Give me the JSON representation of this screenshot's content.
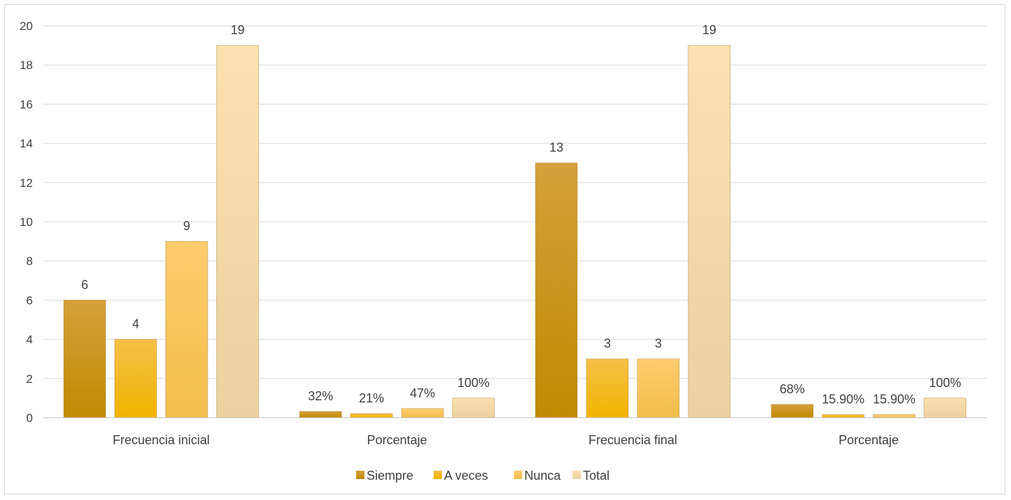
{
  "chart_data": {
    "type": "bar",
    "categories": [
      "Frecuencia inicial",
      "Porcentaje",
      "Frecuencia final",
      "Porcentaje"
    ],
    "series": [
      {
        "name": "Siempre",
        "values": [
          6,
          0.32,
          13,
          0.68
        ],
        "labels": [
          "6",
          "32%",
          "13",
          "68%"
        ],
        "color_top": "#d4a03c",
        "color_bottom": "#c08a00"
      },
      {
        "name": "A veces",
        "values": [
          4,
          0.21,
          3,
          0.159
        ],
        "labels": [
          "4",
          "21%",
          "3",
          "15.90%"
        ],
        "color_top": "#f5c048",
        "color_bottom": "#f2b400"
      },
      {
        "name": "Nunca",
        "values": [
          9,
          0.47,
          3,
          0.159
        ],
        "labels": [
          "9",
          "47%",
          "3",
          "15.90%"
        ],
        "color_top": "#ffcc6e",
        "color_bottom": "#f1bd4c"
      },
      {
        "name": "Total",
        "values": [
          19,
          1,
          19,
          1
        ],
        "labels": [
          "19",
          "100%",
          "19",
          "100%"
        ],
        "color_top": "#ffe0b0",
        "color_bottom": "#ecd0a0"
      }
    ],
    "ylim": [
      0,
      20
    ],
    "yticks": [
      0,
      2,
      4,
      6,
      8,
      10,
      12,
      14,
      16,
      18,
      20
    ],
    "grid": true,
    "legend_position": "bottom"
  }
}
